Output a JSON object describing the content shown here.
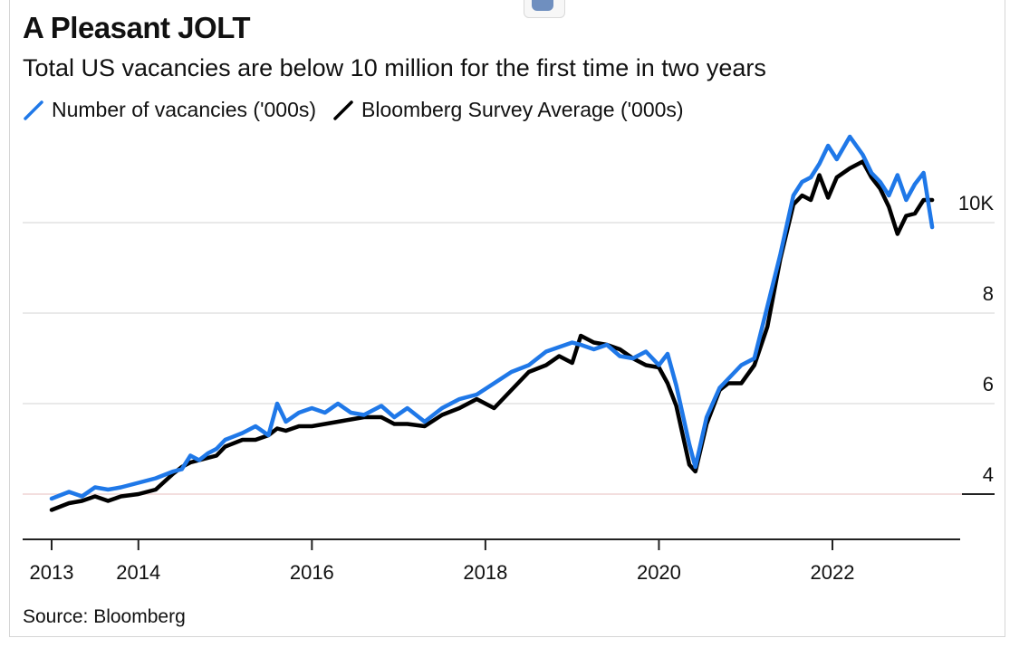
{
  "chart_data": {
    "type": "line",
    "title": "A Pleasant JOLT",
    "subtitle": "Total US vacancies are below 10 million for the first time in two years",
    "source": "Source: Bloomberg",
    "legend_placement": "top-left",
    "grid": true,
    "xlim": [
      2013,
      2023.3
    ],
    "ylim": [
      3,
      12
    ],
    "x_ticks": [
      {
        "value": 2013,
        "label": "2013"
      },
      {
        "value": 2014,
        "label": "2014"
      },
      {
        "value": 2016,
        "label": "2016"
      },
      {
        "value": 2018,
        "label": "2018"
      },
      {
        "value": 2020,
        "label": "2020"
      },
      {
        "value": 2022,
        "label": "2022"
      }
    ],
    "y_ticks": [
      {
        "value": 4,
        "label": "4"
      },
      {
        "value": 6,
        "label": "6"
      },
      {
        "value": 8,
        "label": "8"
      },
      {
        "value": 10,
        "label": "10K"
      }
    ],
    "series": [
      {
        "name": "Number of vacancies ('000s)",
        "color": "#1f78e8",
        "points": [
          [
            2013.0,
            3.9
          ],
          [
            2013.2,
            4.05
          ],
          [
            2013.35,
            3.95
          ],
          [
            2013.5,
            4.15
          ],
          [
            2013.65,
            4.1
          ],
          [
            2013.8,
            4.15
          ],
          [
            2014.0,
            4.25
          ],
          [
            2014.2,
            4.35
          ],
          [
            2014.4,
            4.5
          ],
          [
            2014.5,
            4.55
          ],
          [
            2014.6,
            4.85
          ],
          [
            2014.7,
            4.75
          ],
          [
            2014.8,
            4.9
          ],
          [
            2014.9,
            5.0
          ],
          [
            2015.0,
            5.2
          ],
          [
            2015.2,
            5.35
          ],
          [
            2015.35,
            5.5
          ],
          [
            2015.5,
            5.3
          ],
          [
            2015.6,
            6.0
          ],
          [
            2015.7,
            5.6
          ],
          [
            2015.85,
            5.8
          ],
          [
            2016.0,
            5.9
          ],
          [
            2016.15,
            5.8
          ],
          [
            2016.3,
            6.0
          ],
          [
            2016.45,
            5.8
          ],
          [
            2016.6,
            5.75
          ],
          [
            2016.8,
            5.95
          ],
          [
            2016.95,
            5.7
          ],
          [
            2017.1,
            5.9
          ],
          [
            2017.3,
            5.6
          ],
          [
            2017.5,
            5.9
          ],
          [
            2017.7,
            6.1
          ],
          [
            2017.9,
            6.2
          ],
          [
            2018.1,
            6.45
          ],
          [
            2018.3,
            6.7
          ],
          [
            2018.5,
            6.85
          ],
          [
            2018.7,
            7.15
          ],
          [
            2018.85,
            7.25
          ],
          [
            2019.0,
            7.35
          ],
          [
            2019.1,
            7.3
          ],
          [
            2019.25,
            7.2
          ],
          [
            2019.4,
            7.3
          ],
          [
            2019.55,
            7.05
          ],
          [
            2019.7,
            7.0
          ],
          [
            2019.85,
            7.15
          ],
          [
            2020.0,
            6.85
          ],
          [
            2020.1,
            7.1
          ],
          [
            2020.2,
            6.4
          ],
          [
            2020.35,
            5.1
          ],
          [
            2020.42,
            4.6
          ],
          [
            2020.55,
            5.7
          ],
          [
            2020.7,
            6.35
          ],
          [
            2020.8,
            6.55
          ],
          [
            2020.95,
            6.85
          ],
          [
            2021.1,
            7.0
          ],
          [
            2021.25,
            8.15
          ],
          [
            2021.4,
            9.3
          ],
          [
            2021.55,
            10.6
          ],
          [
            2021.65,
            10.9
          ],
          [
            2021.75,
            11.0
          ],
          [
            2021.85,
            11.3
          ],
          [
            2021.95,
            11.7
          ],
          [
            2022.05,
            11.4
          ],
          [
            2022.2,
            11.9
          ],
          [
            2022.35,
            11.5
          ],
          [
            2022.45,
            11.1
          ],
          [
            2022.55,
            10.9
          ],
          [
            2022.65,
            10.6
          ],
          [
            2022.75,
            11.05
          ],
          [
            2022.85,
            10.5
          ],
          [
            2022.95,
            10.85
          ],
          [
            2023.05,
            11.1
          ],
          [
            2023.15,
            9.9
          ]
        ]
      },
      {
        "name": "Bloomberg Survey Average ('000s)",
        "color": "#000000",
        "points": [
          [
            2013.0,
            3.65
          ],
          [
            2013.2,
            3.8
          ],
          [
            2013.35,
            3.85
          ],
          [
            2013.5,
            3.95
          ],
          [
            2013.65,
            3.85
          ],
          [
            2013.8,
            3.95
          ],
          [
            2014.0,
            4.0
          ],
          [
            2014.2,
            4.1
          ],
          [
            2014.4,
            4.45
          ],
          [
            2014.5,
            4.6
          ],
          [
            2014.6,
            4.7
          ],
          [
            2014.7,
            4.75
          ],
          [
            2014.8,
            4.8
          ],
          [
            2014.9,
            4.85
          ],
          [
            2015.0,
            5.05
          ],
          [
            2015.2,
            5.2
          ],
          [
            2015.35,
            5.2
          ],
          [
            2015.5,
            5.3
          ],
          [
            2015.6,
            5.45
          ],
          [
            2015.7,
            5.4
          ],
          [
            2015.85,
            5.5
          ],
          [
            2016.0,
            5.5
          ],
          [
            2016.15,
            5.55
          ],
          [
            2016.3,
            5.6
          ],
          [
            2016.45,
            5.65
          ],
          [
            2016.6,
            5.7
          ],
          [
            2016.8,
            5.7
          ],
          [
            2016.95,
            5.55
          ],
          [
            2017.1,
            5.55
          ],
          [
            2017.3,
            5.5
          ],
          [
            2017.5,
            5.75
          ],
          [
            2017.7,
            5.9
          ],
          [
            2017.9,
            6.1
          ],
          [
            2018.1,
            5.9
          ],
          [
            2018.3,
            6.3
          ],
          [
            2018.5,
            6.7
          ],
          [
            2018.7,
            6.85
          ],
          [
            2018.85,
            7.05
          ],
          [
            2019.0,
            6.9
          ],
          [
            2019.1,
            7.5
          ],
          [
            2019.25,
            7.35
          ],
          [
            2019.4,
            7.3
          ],
          [
            2019.55,
            7.2
          ],
          [
            2019.7,
            7.0
          ],
          [
            2019.85,
            6.85
          ],
          [
            2020.0,
            6.8
          ],
          [
            2020.1,
            6.45
          ],
          [
            2020.2,
            5.95
          ],
          [
            2020.35,
            4.65
          ],
          [
            2020.42,
            4.5
          ],
          [
            2020.55,
            5.55
          ],
          [
            2020.7,
            6.3
          ],
          [
            2020.8,
            6.45
          ],
          [
            2020.95,
            6.45
          ],
          [
            2021.1,
            6.85
          ],
          [
            2021.25,
            7.7
          ],
          [
            2021.4,
            9.2
          ],
          [
            2021.55,
            10.4
          ],
          [
            2021.65,
            10.6
          ],
          [
            2021.75,
            10.5
          ],
          [
            2021.85,
            11.05
          ],
          [
            2021.95,
            10.55
          ],
          [
            2022.05,
            11.0
          ],
          [
            2022.2,
            11.2
          ],
          [
            2022.35,
            11.35
          ],
          [
            2022.45,
            11.0
          ],
          [
            2022.55,
            10.75
          ],
          [
            2022.65,
            10.35
          ],
          [
            2022.75,
            9.75
          ],
          [
            2022.85,
            10.15
          ],
          [
            2022.95,
            10.2
          ],
          [
            2023.05,
            10.5
          ],
          [
            2023.15,
            10.5
          ]
        ]
      }
    ]
  }
}
